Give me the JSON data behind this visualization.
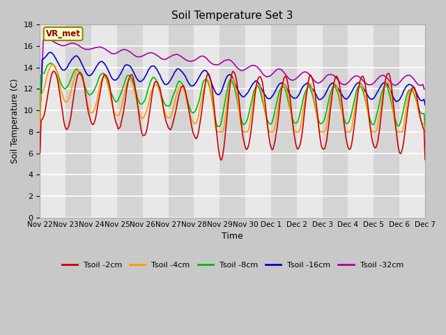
{
  "title": "Soil Temperature Set 3",
  "xlabel": "Time",
  "ylabel": "Soil Temperature (C)",
  "ylim": [
    0,
    18
  ],
  "yticks": [
    0,
    2,
    4,
    6,
    8,
    10,
    12,
    14,
    16,
    18
  ],
  "colors": {
    "Tsoil -2cm": "#cc0000",
    "Tsoil -4cm": "#ff9900",
    "Tsoil -8cm": "#00bb00",
    "Tsoil -16cm": "#0000cc",
    "Tsoil -32cm": "#aa00aa"
  },
  "legend_labels": [
    "Tsoil -2cm",
    "Tsoil -4cm",
    "Tsoil -8cm",
    "Tsoil -16cm",
    "Tsoil -32cm"
  ],
  "annotation": "VR_met",
  "fig_bg": "#c8c8c8",
  "band_colors": [
    "#e8e8e8",
    "#d4d4d4"
  ],
  "grid_color": "#ffffff",
  "date_labels": [
    "Nov 22",
    "Nov 23",
    "Nov 24",
    "Nov 25",
    "Nov 26",
    "Nov 27",
    "Nov 28",
    "Nov 29",
    "Nov 30",
    "Dec 1",
    "Dec 2",
    "Dec 3",
    "Dec 4",
    "Dec 5",
    "Dec 6",
    "Dec 7"
  ],
  "date_positions": [
    0,
    24,
    48,
    72,
    96,
    120,
    144,
    168,
    192,
    216,
    240,
    264,
    288,
    312,
    336,
    360
  ]
}
